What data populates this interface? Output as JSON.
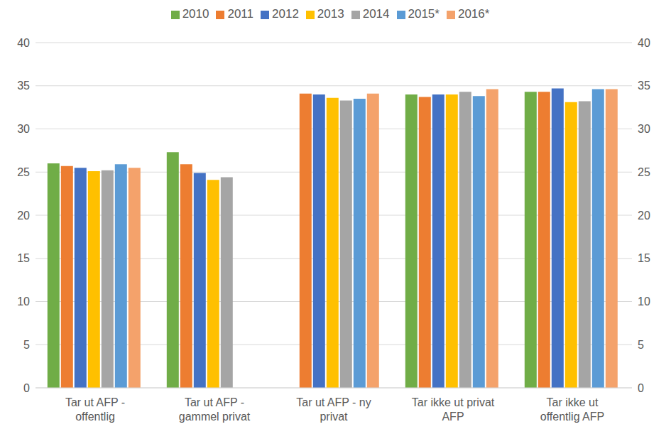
{
  "chart_data": {
    "type": "bar",
    "categories": [
      "Tar ut AFP - offentlig",
      "Tar ut AFP - gammel privat",
      "Tar ut AFP - ny privat",
      "Tar ikke ut privat AFP",
      "Tar ikke ut offentlig AFP"
    ],
    "series": [
      {
        "name": "2010",
        "color": "#70ad47",
        "values": [
          26.0,
          27.3,
          null,
          34.0,
          34.3
        ]
      },
      {
        "name": "2011",
        "color": "#ed7d31",
        "values": [
          25.7,
          25.9,
          34.1,
          33.7,
          34.3
        ]
      },
      {
        "name": "2012",
        "color": "#4472c4",
        "values": [
          25.5,
          24.9,
          34.0,
          34.0,
          34.7
        ]
      },
      {
        "name": "2013",
        "color": "#ffc000",
        "values": [
          25.1,
          24.1,
          33.6,
          34.0,
          33.1
        ]
      },
      {
        "name": "2014",
        "color": "#a5a5a5",
        "values": [
          25.2,
          24.4,
          33.3,
          34.3,
          33.2
        ]
      },
      {
        "name": "2015*",
        "color": "#5b9bd5",
        "values": [
          25.9,
          null,
          33.5,
          33.8,
          34.6
        ]
      },
      {
        "name": "2016*",
        "color": "#f4a26b",
        "values": [
          25.5,
          null,
          34.1,
          34.6,
          34.6
        ]
      }
    ],
    "ylim": [
      0,
      40
    ],
    "yticks": [
      0,
      5,
      10,
      15,
      20,
      25,
      30,
      35,
      40
    ],
    "y2lim": [
      0,
      40
    ],
    "y2ticks": [
      0,
      5,
      10,
      15,
      20,
      25,
      30,
      35,
      40
    ],
    "grid": true,
    "legend": "top"
  }
}
